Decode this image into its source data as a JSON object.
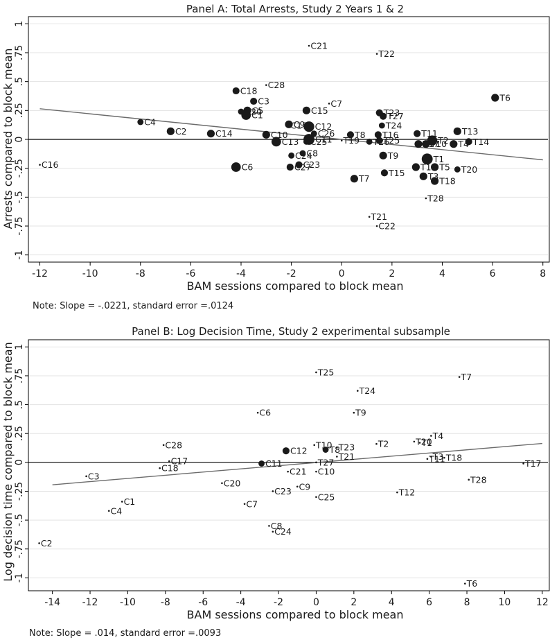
{
  "chart_data": [
    {
      "type": "scatter",
      "title": "Panel A: Total Arrests, Study 2 Years 1 & 2",
      "xlabel": "BAM sessions compared to block mean",
      "ylabel": "Arrests compared to block mean",
      "note": "Note: Slope = -.0221, standard error =.0124",
      "xlim": [
        -12.4,
        8.2
      ],
      "ylim": [
        -1.05,
        1.05
      ],
      "xticks": [
        -12,
        -10,
        -8,
        -6,
        -4,
        -2,
        0,
        2,
        4,
        6,
        8
      ],
      "yticks": [
        -1,
        -0.75,
        -0.5,
        -0.25,
        0,
        0.25,
        0.5,
        0.75,
        1
      ],
      "ytick_labels": [
        "-1",
        "-.75",
        "-.5",
        "-.25",
        "0",
        ".25",
        ".5",
        ".75",
        "1"
      ],
      "grid": true,
      "zero_line": true,
      "fit_line": {
        "x": [
          -12,
          8
        ],
        "y": [
          0.265,
          -0.177
        ]
      },
      "points": [
        {
          "label": "C21",
          "x": -1.3,
          "y": 0.81,
          "size": 1
        },
        {
          "label": "T22",
          "x": 1.4,
          "y": 0.74,
          "size": 1
        },
        {
          "label": "C18",
          "x": -4.2,
          "y": 0.42,
          "size": 3
        },
        {
          "label": "C28",
          "x": -3.0,
          "y": 0.47,
          "size": 1
        },
        {
          "label": "T6",
          "x": 6.1,
          "y": 0.36,
          "size": 4
        },
        {
          "label": "C3",
          "x": -3.5,
          "y": 0.33,
          "size": 3
        },
        {
          "label": "C7",
          "x": -0.5,
          "y": 0.31,
          "size": 1
        },
        {
          "label": "C5",
          "x": -3.75,
          "y": 0.25,
          "size": 4
        },
        {
          "label": "C20",
          "x": -4.0,
          "y": 0.24,
          "size": 2
        },
        {
          "label": "C1",
          "x": -3.8,
          "y": 0.21,
          "size": 7
        },
        {
          "label": "C15",
          "x": -1.4,
          "y": 0.25,
          "size": 4
        },
        {
          "label": "T23",
          "x": 1.5,
          "y": 0.23,
          "size": 3
        },
        {
          "label": "T27",
          "x": 1.65,
          "y": 0.2,
          "size": 3
        },
        {
          "label": "C4",
          "x": -8.0,
          "y": 0.15,
          "size": 2
        },
        {
          "label": "T24",
          "x": 1.6,
          "y": 0.12,
          "size": 2
        },
        {
          "label": "C9",
          "x": -2.1,
          "y": 0.13,
          "size": 4
        },
        {
          "label": "C17",
          "x": -2.1,
          "y": 0.12,
          "size": 1
        },
        {
          "label": "C12",
          "x": -1.3,
          "y": 0.11,
          "size": 9
        },
        {
          "label": "C2",
          "x": -6.8,
          "y": 0.07,
          "size": 4
        },
        {
          "label": "T8",
          "x": 0.35,
          "y": 0.04,
          "size": 3
        },
        {
          "label": "C14",
          "x": -5.2,
          "y": 0.05,
          "size": 4
        },
        {
          "label": "C26",
          "x": -1.1,
          "y": 0.05,
          "size": 2
        },
        {
          "label": "T16",
          "x": 1.45,
          "y": 0.04,
          "size": 3
        },
        {
          "label": "T11",
          "x": 3.0,
          "y": 0.05,
          "size": 3
        },
        {
          "label": "T13",
          "x": 4.6,
          "y": 0.07,
          "size": 4
        },
        {
          "label": "C10",
          "x": -3.0,
          "y": 0.04,
          "size": 4
        },
        {
          "label": "C11",
          "x": -1.3,
          "y": 0.0,
          "size": 10
        },
        {
          "label": "T2",
          "x": 3.6,
          "y": -0.01,
          "size": 8
        },
        {
          "label": "C13",
          "x": -2.6,
          "y": -0.02,
          "size": 7
        },
        {
          "label": "C25",
          "x": -1.4,
          "y": -0.02,
          "size": 2
        },
        {
          "label": "T19",
          "x": 0.0,
          "y": -0.01,
          "size": 1
        },
        {
          "label": "T25",
          "x": 1.5,
          "y": -0.01,
          "size": 3
        },
        {
          "label": "T26",
          "x": 1.1,
          "y": -0.02,
          "size": 2
        },
        {
          "label": "T14",
          "x": 5.05,
          "y": -0.02,
          "size": 3
        },
        {
          "label": "T17",
          "x": 3.05,
          "y": -0.04,
          "size": 4
        },
        {
          "label": "T10",
          "x": 3.35,
          "y": -0.04,
          "size": 4
        },
        {
          "label": "T4",
          "x": 4.45,
          "y": -0.04,
          "size": 4
        },
        {
          "label": "C8",
          "x": -1.55,
          "y": -0.12,
          "size": 2
        },
        {
          "label": "C24",
          "x": -2.0,
          "y": -0.14,
          "size": 2
        },
        {
          "label": "T9",
          "x": 1.65,
          "y": -0.14,
          "size": 4
        },
        {
          "label": "T1",
          "x": 3.4,
          "y": -0.17,
          "size": 10
        },
        {
          "label": "C16",
          "x": -12.0,
          "y": -0.22,
          "size": 1
        },
        {
          "label": "C6",
          "x": -4.2,
          "y": -0.24,
          "size": 7
        },
        {
          "label": "C23",
          "x": -1.7,
          "y": -0.22,
          "size": 3
        },
        {
          "label": "C27",
          "x": -2.05,
          "y": -0.24,
          "size": 3
        },
        {
          "label": "T12",
          "x": 2.95,
          "y": -0.24,
          "size": 4
        },
        {
          "label": "T5",
          "x": 3.7,
          "y": -0.24,
          "size": 4
        },
        {
          "label": "T20",
          "x": 4.6,
          "y": -0.26,
          "size": 2
        },
        {
          "label": "T15",
          "x": 1.7,
          "y": -0.29,
          "size": 3
        },
        {
          "label": "T3",
          "x": 3.25,
          "y": -0.32,
          "size": 4
        },
        {
          "label": "T7",
          "x": 0.5,
          "y": -0.34,
          "size": 4
        },
        {
          "label": "T18",
          "x": 3.7,
          "y": -0.36,
          "size": 4
        },
        {
          "label": "T28",
          "x": 3.35,
          "y": -0.51,
          "size": 1
        },
        {
          "label": "T21",
          "x": 1.1,
          "y": -0.67,
          "size": 1
        },
        {
          "label": "C22",
          "x": 1.4,
          "y": -0.75,
          "size": 1
        }
      ]
    },
    {
      "type": "scatter",
      "title": "Panel B: Log Decision Time, Study 2 experimental subsample",
      "xlabel": "BAM sessions compared to block mean",
      "ylabel": "Log decision time compared to block mean",
      "note": "Note: Slope = .014, standard error =.0093",
      "xlim": [
        -15.2,
        12.3
      ],
      "ylim": [
        -1.1,
        1.05
      ],
      "xticks": [
        -14,
        -12,
        -10,
        -8,
        -6,
        -4,
        -2,
        0,
        2,
        4,
        6,
        8,
        10,
        12
      ],
      "yticks": [
        -1,
        -0.75,
        -0.5,
        -0.25,
        0,
        0.25,
        0.5,
        0.75,
        1
      ],
      "ytick_labels": [
        "-1",
        "-.75",
        "-.5",
        "-.25",
        "0",
        ".25",
        ".5",
        ".75",
        "1"
      ],
      "grid": true,
      "zero_line": true,
      "fit_line": {
        "x": [
          -14,
          12
        ],
        "y": [
          -0.194,
          0.164
        ]
      },
      "points": [
        {
          "label": "T25",
          "x": 0.0,
          "y": 0.78,
          "size": 1
        },
        {
          "label": "T7",
          "x": 7.6,
          "y": 0.74,
          "size": 1
        },
        {
          "label": "T24",
          "x": 2.2,
          "y": 0.62,
          "size": 1
        },
        {
          "label": "C6",
          "x": -3.1,
          "y": 0.43,
          "size": 1
        },
        {
          "label": "T9",
          "x": 2.0,
          "y": 0.43,
          "size": 1
        },
        {
          "label": "T4",
          "x": 6.1,
          "y": 0.23,
          "size": 1
        },
        {
          "label": "T20",
          "x": 5.2,
          "y": 0.18,
          "size": 1
        },
        {
          "label": "T1",
          "x": 5.5,
          "y": 0.17,
          "size": 1
        },
        {
          "label": "T2",
          "x": 3.2,
          "y": 0.16,
          "size": 1
        },
        {
          "label": "C28",
          "x": -8.1,
          "y": 0.15,
          "size": 1
        },
        {
          "label": "T10",
          "x": -0.1,
          "y": 0.15,
          "size": 1
        },
        {
          "label": "T23",
          "x": 1.1,
          "y": 0.13,
          "size": 1
        },
        {
          "label": "T8",
          "x": 0.5,
          "y": 0.11,
          "size": 2
        },
        {
          "label": "C12",
          "x": -1.6,
          "y": 0.1,
          "size": 3
        },
        {
          "label": "T21",
          "x": 1.1,
          "y": 0.05,
          "size": 1
        },
        {
          "label": "T3",
          "x": 6.1,
          "y": 0.05,
          "size": 1
        },
        {
          "label": "T18",
          "x": 6.8,
          "y": 0.04,
          "size": 1
        },
        {
          "label": "T11",
          "x": 5.9,
          "y": 0.03,
          "size": 1
        },
        {
          "label": "C17",
          "x": -7.8,
          "y": 0.01,
          "size": 1
        },
        {
          "label": "T27",
          "x": 0.0,
          "y": 0.0,
          "size": 1
        },
        {
          "label": "C11",
          "x": -2.9,
          "y": -0.01,
          "size": 2
        },
        {
          "label": "T17",
          "x": 11.0,
          "y": -0.01,
          "size": 1
        },
        {
          "label": "C18",
          "x": -8.3,
          "y": -0.05,
          "size": 1
        },
        {
          "label": "C21",
          "x": -1.5,
          "y": -0.08,
          "size": 1
        },
        {
          "label": "C10",
          "x": 0.0,
          "y": -0.08,
          "size": 1
        },
        {
          "label": "C3",
          "x": -12.2,
          "y": -0.12,
          "size": 1
        },
        {
          "label": "T28",
          "x": 8.1,
          "y": -0.15,
          "size": 1
        },
        {
          "label": "C20",
          "x": -5.0,
          "y": -0.18,
          "size": 1
        },
        {
          "label": "C9",
          "x": -1.0,
          "y": -0.21,
          "size": 1
        },
        {
          "label": "C23",
          "x": -2.3,
          "y": -0.25,
          "size": 1
        },
        {
          "label": "T12",
          "x": 4.3,
          "y": -0.26,
          "size": 1
        },
        {
          "label": "C25",
          "x": 0.0,
          "y": -0.3,
          "size": 1
        },
        {
          "label": "C1",
          "x": -10.3,
          "y": -0.34,
          "size": 1
        },
        {
          "label": "C7",
          "x": -3.8,
          "y": -0.36,
          "size": 1
        },
        {
          "label": "C4",
          "x": -11.0,
          "y": -0.42,
          "size": 1
        },
        {
          "label": "C8",
          "x": -2.5,
          "y": -0.55,
          "size": 1
        },
        {
          "label": "C24",
          "x": -2.3,
          "y": -0.6,
          "size": 1
        },
        {
          "label": "C2",
          "x": -14.7,
          "y": -0.7,
          "size": 1
        },
        {
          "label": "T6",
          "x": 7.9,
          "y": -1.05,
          "size": 1
        }
      ]
    }
  ]
}
